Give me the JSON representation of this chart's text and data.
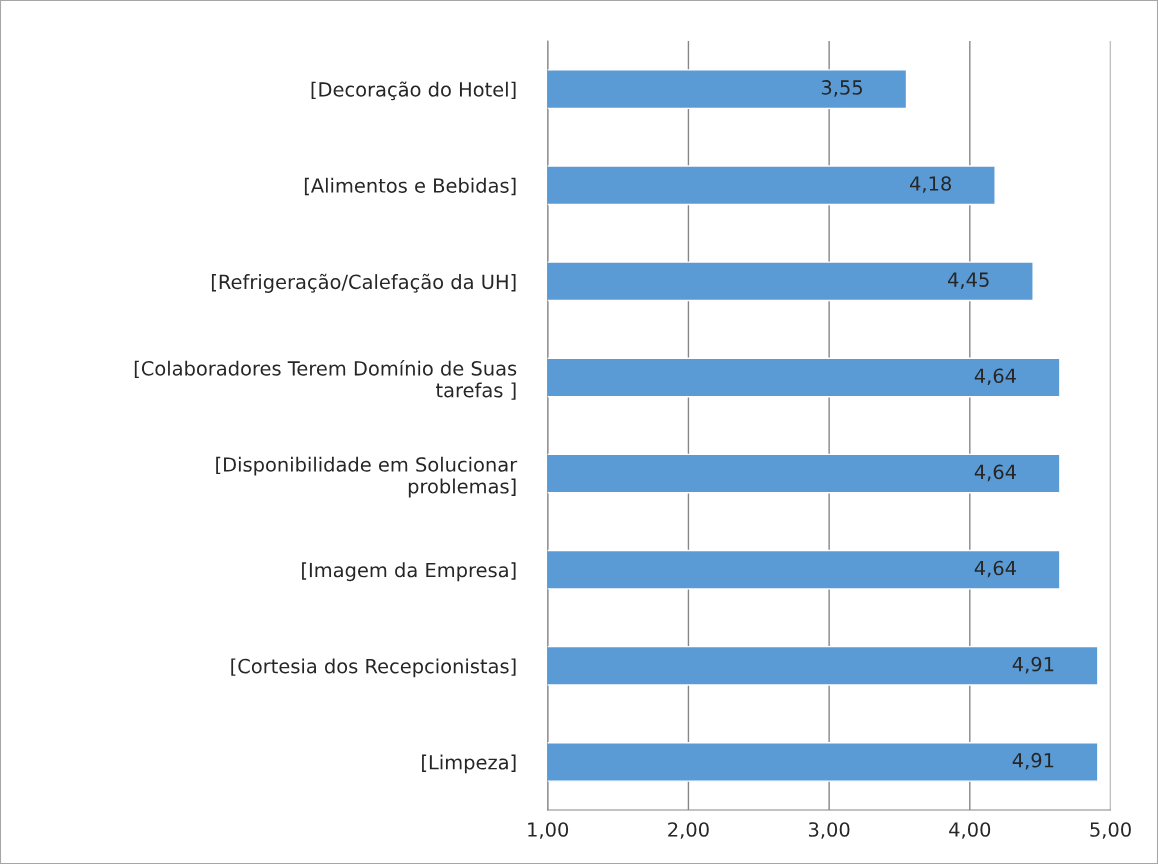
{
  "chart_data": {
    "type": "bar",
    "orientation": "horizontal",
    "categories": [
      "[Decoração do Hotel]",
      "[Alimentos e Bebidas]",
      "[Refrigeração/Calefação da UH]",
      "[Colaboradores Terem Domínio de Suas tarefas ]",
      "[Disponibilidade em Solucionar problemas]",
      "[Imagem da Empresa]",
      "[Cortesia dos Recepcionistas]",
      "[Limpeza]"
    ],
    "values": [
      3.55,
      4.18,
      4.45,
      4.64,
      4.64,
      4.64,
      4.91,
      4.91
    ],
    "value_labels": [
      "3,55",
      "4,18",
      "4,45",
      "4,64",
      "4,64",
      "4,64",
      "4,91",
      "4,91"
    ],
    "color": "#5b9bd5",
    "xlim": [
      1,
      5
    ],
    "xticks": [
      {
        "value": 1,
        "label": "1,00"
      },
      {
        "value": 2,
        "label": "2,00"
      },
      {
        "value": 3,
        "label": "3,00"
      },
      {
        "value": 4,
        "label": "4,00"
      },
      {
        "value": 5,
        "label": "5,00"
      }
    ],
    "grid": "x"
  }
}
